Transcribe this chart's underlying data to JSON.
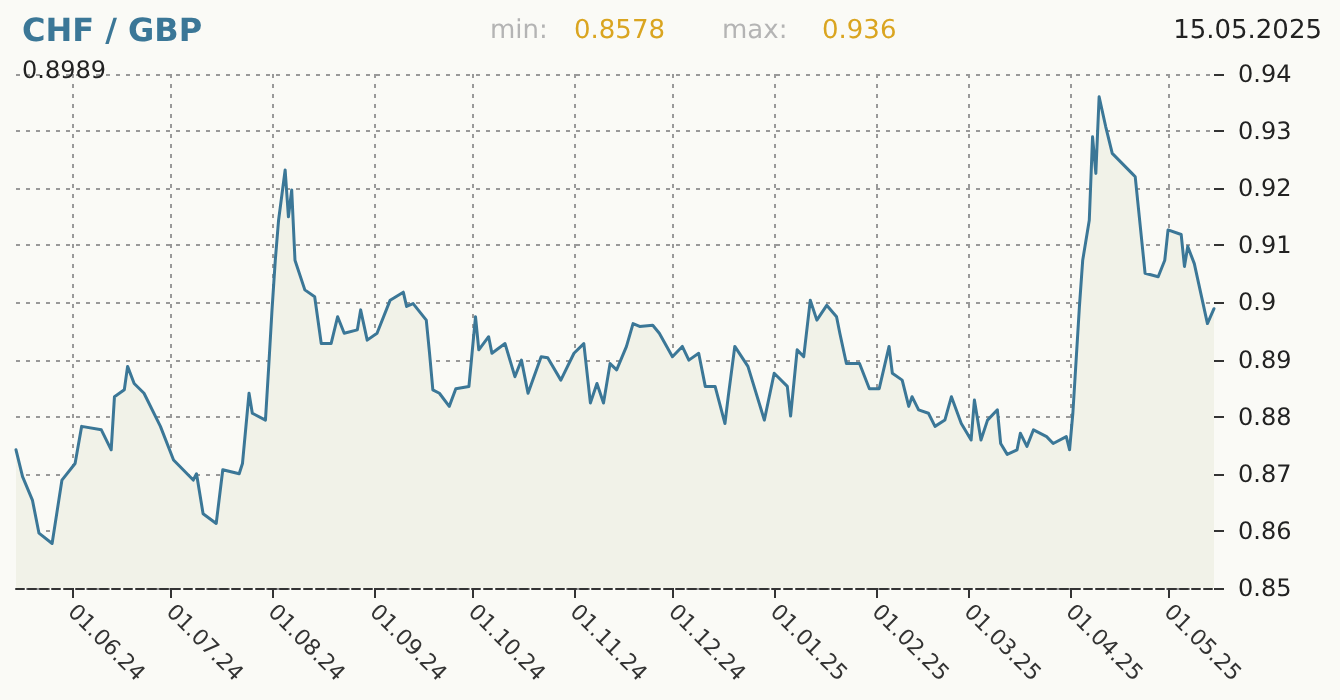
{
  "chart_data": {
    "type": "area",
    "title": "CHF / GBP",
    "annotations": [
      "min:",
      "0.8578",
      "max:",
      "0.936",
      "15.05.2025",
      "0.8989"
    ],
    "xlim": [
      "2024-05-15",
      "2025-05-15"
    ],
    "xticks": [
      {
        "value": "2024-06-01",
        "label": "01.06.24"
      },
      {
        "value": "2024-07-01",
        "label": "01.07.24"
      },
      {
        "value": "2024-08-01",
        "label": "01.08.24"
      },
      {
        "value": "2024-09-01",
        "label": "01.09.24"
      },
      {
        "value": "2024-10-01",
        "label": "01.10.24"
      },
      {
        "value": "2024-11-01",
        "label": "01.11.24"
      },
      {
        "value": "2024-12-01",
        "label": "01.12.24"
      },
      {
        "value": "2025-01-01",
        "label": "01.01.25"
      },
      {
        "value": "2025-02-01",
        "label": "01.02.25"
      },
      {
        "value": "2025-03-01",
        "label": "01.03.25"
      },
      {
        "value": "2025-04-01",
        "label": "01.04.25"
      },
      {
        "value": "2025-05-01",
        "label": "01.05.25"
      }
    ],
    "ylim": [
      0.85,
      0.94
    ],
    "yticks": [
      0.85,
      0.86,
      0.87,
      0.88,
      0.89,
      0.9,
      0.91,
      0.92,
      0.93,
      0.94
    ],
    "grid": true,
    "marker": "none",
    "line_style": "solid",
    "x": [
      "2024-05-15",
      "2024-05-17",
      "2024-05-20",
      "2024-05-22",
      "2024-05-26",
      "2024-05-29",
      "2024-06-02",
      "2024-06-04",
      "2024-06-10",
      "2024-06-13",
      "2024-06-14",
      "2024-06-17",
      "2024-06-18",
      "2024-06-20",
      "2024-06-23",
      "2024-06-28",
      "2024-07-02",
      "2024-07-08",
      "2024-07-09",
      "2024-07-11",
      "2024-07-15",
      "2024-07-17",
      "2024-07-22",
      "2024-07-23",
      "2024-07-25",
      "2024-07-26",
      "2024-07-30",
      "2024-07-31",
      "2024-08-01",
      "2024-08-02",
      "2024-08-03",
      "2024-08-05",
      "2024-08-06",
      "2024-08-07",
      "2024-08-08",
      "2024-08-11",
      "2024-08-14",
      "2024-08-16",
      "2024-08-19",
      "2024-08-21",
      "2024-08-23",
      "2024-08-27",
      "2024-08-28",
      "2024-08-30",
      "2024-09-02",
      "2024-09-06",
      "2024-09-10",
      "2024-09-11",
      "2024-09-13",
      "2024-09-17",
      "2024-09-18",
      "2024-09-19",
      "2024-09-21",
      "2024-09-24",
      "2024-09-26",
      "2024-09-30",
      "2024-10-02",
      "2024-10-03",
      "2024-10-06",
      "2024-10-07",
      "2024-10-11",
      "2024-10-14",
      "2024-10-16",
      "2024-10-18",
      "2024-10-22",
      "2024-10-24",
      "2024-10-28",
      "2024-11-01",
      "2024-11-04",
      "2024-11-06",
      "2024-11-08",
      "2024-11-10",
      "2024-11-12",
      "2024-11-14",
      "2024-11-17",
      "2024-11-19",
      "2024-11-21",
      "2024-11-25",
      "2024-11-27",
      "2024-12-01",
      "2024-12-04",
      "2024-12-06",
      "2024-12-09",
      "2024-12-11",
      "2024-12-14",
      "2024-12-17",
      "2024-12-18",
      "2024-12-20",
      "2024-12-24",
      "2024-12-29",
      "2025-01-01",
      "2025-01-05",
      "2025-01-06",
      "2025-01-08",
      "2025-01-10",
      "2025-01-12",
      "2025-01-14",
      "2025-01-17",
      "2025-01-20",
      "2025-01-21",
      "2025-01-23",
      "2025-01-27",
      "2025-01-30",
      "2025-02-02",
      "2025-02-05",
      "2025-02-06",
      "2025-02-09",
      "2025-02-11",
      "2025-02-12",
      "2025-02-14",
      "2025-02-17",
      "2025-02-19",
      "2025-02-22",
      "2025-02-24",
      "2025-02-27",
      "2025-03-02",
      "2025-03-03",
      "2025-03-05",
      "2025-03-07",
      "2025-03-10",
      "2025-03-11",
      "2025-03-13",
      "2025-03-16",
      "2025-03-17",
      "2025-03-19",
      "2025-03-21",
      "2025-03-25",
      "2025-03-27",
      "2025-03-31",
      "2025-04-01",
      "2025-04-02",
      "2025-04-04",
      "2025-04-05",
      "2025-04-07",
      "2025-04-08",
      "2025-04-09",
      "2025-04-10",
      "2025-04-12",
      "2025-04-14",
      "2025-04-20",
      "2025-04-21",
      "2025-04-24",
      "2025-04-28",
      "2025-04-30",
      "2025-05-01",
      "2025-05-05",
      "2025-05-06",
      "2025-05-07",
      "2025-05-09",
      "2025-05-13",
      "2025-05-15"
    ],
    "series": [
      {
        "color": "#3b7797",
        "values": [
          0.8742,
          0.8695,
          0.8654,
          0.8596,
          0.8578,
          0.8689,
          0.8718,
          0.8783,
          0.8777,
          0.8742,
          0.8835,
          0.8847,
          0.8888,
          0.8858,
          0.8841,
          0.8783,
          0.8724,
          0.8689,
          0.87,
          0.863,
          0.8613,
          0.8707,
          0.87,
          0.8718,
          0.8841,
          0.8806,
          0.8794,
          0.8888,
          0.8987,
          0.9074,
          0.9144,
          0.9232,
          0.915,
          0.9197,
          0.9074,
          0.9022,
          0.901,
          0.8928,
          0.8928,
          0.8975,
          0.8946,
          0.8952,
          0.8987,
          0.8934,
          0.8946,
          0.9004,
          0.9018,
          0.8993,
          0.8998,
          0.8969,
          0.8911,
          0.8847,
          0.8841,
          0.8818,
          0.8849,
          0.8853,
          0.8975,
          0.8917,
          0.894,
          0.8911,
          0.8928,
          0.887,
          0.8899,
          0.8841,
          0.8905,
          0.8903,
          0.8864,
          0.8911,
          0.8928,
          0.8824,
          0.8858,
          0.8824,
          0.8893,
          0.8882,
          0.8923,
          0.8963,
          0.8958,
          0.896,
          0.8946,
          0.8905,
          0.8923,
          0.8899,
          0.8911,
          0.8853,
          0.8853,
          0.8788,
          0.8835,
          0.8923,
          0.8888,
          0.8794,
          0.8876,
          0.8853,
          0.8801,
          0.8917,
          0.8905,
          0.9004,
          0.8969,
          0.8995,
          0.8975,
          0.8946,
          0.8893,
          0.8893,
          0.8849,
          0.8849,
          0.8923,
          0.8876,
          0.8864,
          0.8818,
          0.8835,
          0.8812,
          0.8806,
          0.8783,
          0.8794,
          0.8835,
          0.8788,
          0.8759,
          0.8829,
          0.8759,
          0.8794,
          0.8812,
          0.8753,
          0.8734,
          0.8742,
          0.8771,
          0.8748,
          0.8777,
          0.8765,
          0.8753,
          0.8765,
          0.8742,
          0.8806,
          0.8993,
          0.9074,
          0.9144,
          0.929,
          0.9226,
          0.936,
          0.9308,
          0.9261,
          0.9226,
          0.922,
          0.9051,
          0.9045,
          0.9074,
          0.9127,
          0.9119,
          0.9063,
          0.9098,
          0.9068,
          0.8963,
          0.8989
        ]
      }
    ]
  }
}
